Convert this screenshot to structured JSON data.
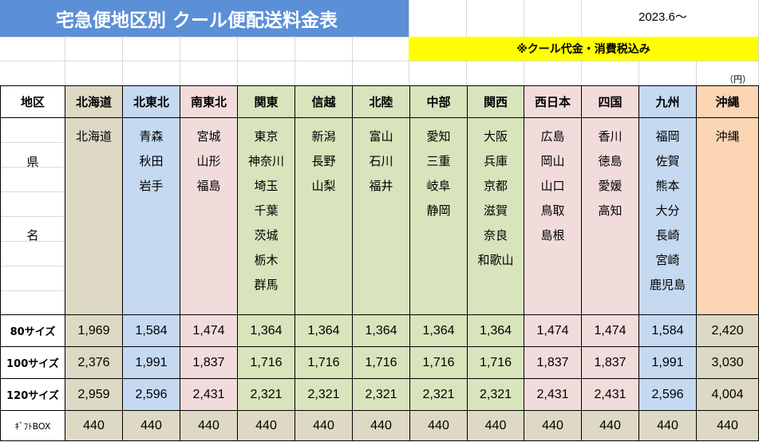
{
  "title": "宅急便地区別 クール便配送料金表",
  "date": "2023.6～",
  "note": "※クール代金・消費税込み",
  "unit": "（円）",
  "colors": {
    "title_bg": "#5b8fd6",
    "note_bg": "#ffff00",
    "gray": "#ddd9c4",
    "blue": "#c5d9f1",
    "pink": "#f2dcdb",
    "green": "#d8e4bc",
    "orange": "#fcd5b4"
  },
  "table": {
    "region_label": "地区",
    "pref_label_top": "県",
    "pref_label_bottom": "名",
    "regions": [
      {
        "name": "北海道",
        "prefs": [
          "北海道"
        ]
      },
      {
        "name": "北東北",
        "prefs": [
          "青森",
          "秋田",
          "岩手"
        ]
      },
      {
        "name": "南東北",
        "prefs": [
          "宮城",
          "山形",
          "福島"
        ]
      },
      {
        "name": "関東",
        "prefs": [
          "東京",
          "神奈川",
          "埼玉",
          "千葉",
          "茨城",
          "栃木",
          "群馬"
        ]
      },
      {
        "name": "信越",
        "prefs": [
          "新潟",
          "長野",
          "山梨"
        ]
      },
      {
        "name": "北陸",
        "prefs": [
          "富山",
          "石川",
          "福井"
        ]
      },
      {
        "name": "中部",
        "prefs": [
          "愛知",
          "三重",
          "岐阜",
          "静岡"
        ]
      },
      {
        "name": "関西",
        "prefs": [
          "大阪",
          "兵庫",
          "京都",
          "滋賀",
          "奈良",
          "和歌山"
        ]
      },
      {
        "name": "西日本",
        "prefs": [
          "広島",
          "岡山",
          "山口",
          "鳥取",
          "島根"
        ]
      },
      {
        "name": "四国",
        "prefs": [
          "香川",
          "徳島",
          "愛媛",
          "高知"
        ]
      },
      {
        "name": "九州",
        "prefs": [
          "福岡",
          "佐賀",
          "熊本",
          "大分",
          "長崎",
          "宮崎",
          "鹿児島"
        ]
      },
      {
        "name": "沖縄",
        "prefs": [
          "沖縄"
        ]
      }
    ],
    "rows": [
      {
        "label": "80サイズ",
        "values": [
          "1,969",
          "1,584",
          "1,474",
          "1,364",
          "1,364",
          "1,364",
          "1,364",
          "1,364",
          "1,474",
          "1,474",
          "1,584",
          "2,420"
        ]
      },
      {
        "label": "100サイズ",
        "values": [
          "2,376",
          "1,991",
          "1,837",
          "1,716",
          "1,716",
          "1,716",
          "1,716",
          "1,716",
          "1,837",
          "1,837",
          "1,991",
          "3,030"
        ]
      },
      {
        "label": "120サイズ",
        "values": [
          "2,959",
          "2,596",
          "2,431",
          "2,321",
          "2,321",
          "2,321",
          "2,321",
          "2,321",
          "2,431",
          "2,431",
          "2,596",
          "4,004"
        ]
      },
      {
        "label": "ｷﾞﾌﾄBOX",
        "values": [
          "440",
          "440",
          "440",
          "440",
          "440",
          "440",
          "440",
          "440",
          "440",
          "440",
          "440",
          "440"
        ]
      }
    ]
  }
}
